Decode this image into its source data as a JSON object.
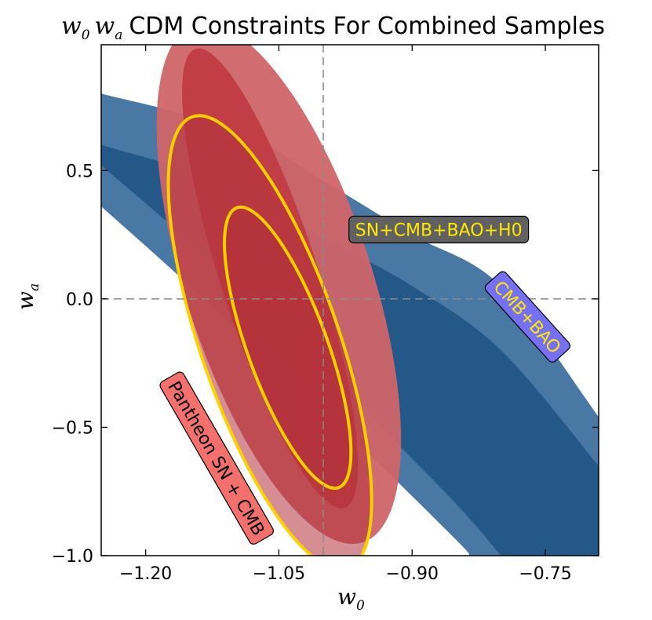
{
  "chart_data": {
    "type": "contour",
    "title_math_1": "w",
    "title_math_1_sub": "0",
    "title_math_2": "w",
    "title_math_2_sub": "a",
    "title_text": "CDM Constraints For Combined Samples",
    "xlabel": "w",
    "xlabel_sub": "0",
    "ylabel": "w",
    "ylabel_sub": "a",
    "xlim": [
      -1.25,
      -0.69
    ],
    "ylim": [
      -1.0,
      0.99
    ],
    "x_ticks": [
      {
        "value": -1.2,
        "label": "−1.20"
      },
      {
        "value": -1.05,
        "label": "−1.05"
      },
      {
        "value": -0.9,
        "label": "−0.90"
      },
      {
        "value": -0.75,
        "label": "−0.75"
      }
    ],
    "y_ticks": [
      {
        "value": 0.5,
        "label": "0.5"
      },
      {
        "value": 0.0,
        "label": "0.0"
      },
      {
        "value": -0.5,
        "label": "−0.5"
      },
      {
        "value": -1.0,
        "label": "−1.0"
      }
    ],
    "reference_lines": {
      "x": -1.0,
      "y": 0.0
    },
    "series": [
      {
        "name": "CMB+BAO",
        "color_outer": "#4a78a4",
        "color_inner": "#245888",
        "band_2sigma": {
          "upper": [
            [
              -1.25,
              0.8
            ],
            [
              -1.1,
              0.66
            ],
            [
              -1.0,
              0.46
            ],
            [
              -0.9,
              0.25
            ],
            [
              -0.8,
              0.05
            ],
            [
              -0.69,
              -0.46
            ]
          ],
          "lower": [
            [
              -1.25,
              0.36
            ],
            [
              -1.15,
              0.05
            ],
            [
              -1.05,
              -0.28
            ],
            [
              -0.95,
              -0.6
            ],
            [
              -0.85,
              -0.94
            ],
            [
              -0.835,
              -1.0
            ]
          ],
          "right_edge": [
            [
              -0.69,
              -0.46
            ],
            [
              -0.69,
              -1.0
            ]
          ]
        },
        "band_1sigma": {
          "upper": [
            [
              -1.25,
              0.6
            ],
            [
              -1.1,
              0.44
            ],
            [
              -1.0,
              0.24
            ],
            [
              -0.9,
              0.05
            ],
            [
              -0.8,
              -0.2
            ],
            [
              -0.69,
              -0.65
            ]
          ],
          "lower": [
            [
              -1.25,
              0.52
            ],
            [
              -1.15,
              0.22
            ],
            [
              -1.05,
              -0.12
            ],
            [
              -0.95,
              -0.45
            ],
            [
              -0.85,
              -0.8
            ],
            [
              -0.8,
              -1.0
            ]
          ]
        }
      },
      {
        "name": "Pantheon SN + CMB",
        "color_outer": "#cf6569",
        "color_inner": "#c13c42",
        "ellipse_2sigma": {
          "center": [
            -1.05,
            0.06
          ],
          "semi_major": 1.06,
          "semi_minor": 0.105,
          "angle_deg": -72
        },
        "ellipse_1sigma": {
          "center": [
            -1.06,
            0.08
          ],
          "semi_major": 0.94,
          "semi_minor": 0.055,
          "angle_deg": -72
        }
      },
      {
        "name": "SN+CMB+BAO+H0",
        "fill_color": "#b3313a",
        "line_color": "#ffd000",
        "ellipse_2sigma": {
          "center": [
            -1.06,
            -0.17
          ],
          "semi_major": 0.93,
          "semi_minor": 0.078,
          "angle_deg": -71
        },
        "ellipse_1sigma": {
          "center": [
            -1.04,
            -0.19
          ],
          "semi_major": 0.58,
          "semi_minor": 0.045,
          "angle_deg": -70
        }
      }
    ],
    "annotations": [
      {
        "text": "SN+CMB+BAO+H0",
        "anchor": [
          -0.87,
          0.27
        ],
        "rotation": 0,
        "box_color": "#616161",
        "text_color": "#ffe800"
      },
      {
        "text": "CMB+BAO",
        "anchor": [
          -0.77,
          -0.07
        ],
        "rotation": 48,
        "box_color": "#7670f4",
        "text_color": "#ffe800"
      },
      {
        "text": "Pantheon SN + CMB",
        "anchor": [
          -1.12,
          -0.62
        ],
        "rotation": 60,
        "box_color": "#f4706c",
        "text_color": "#000000"
      }
    ]
  }
}
